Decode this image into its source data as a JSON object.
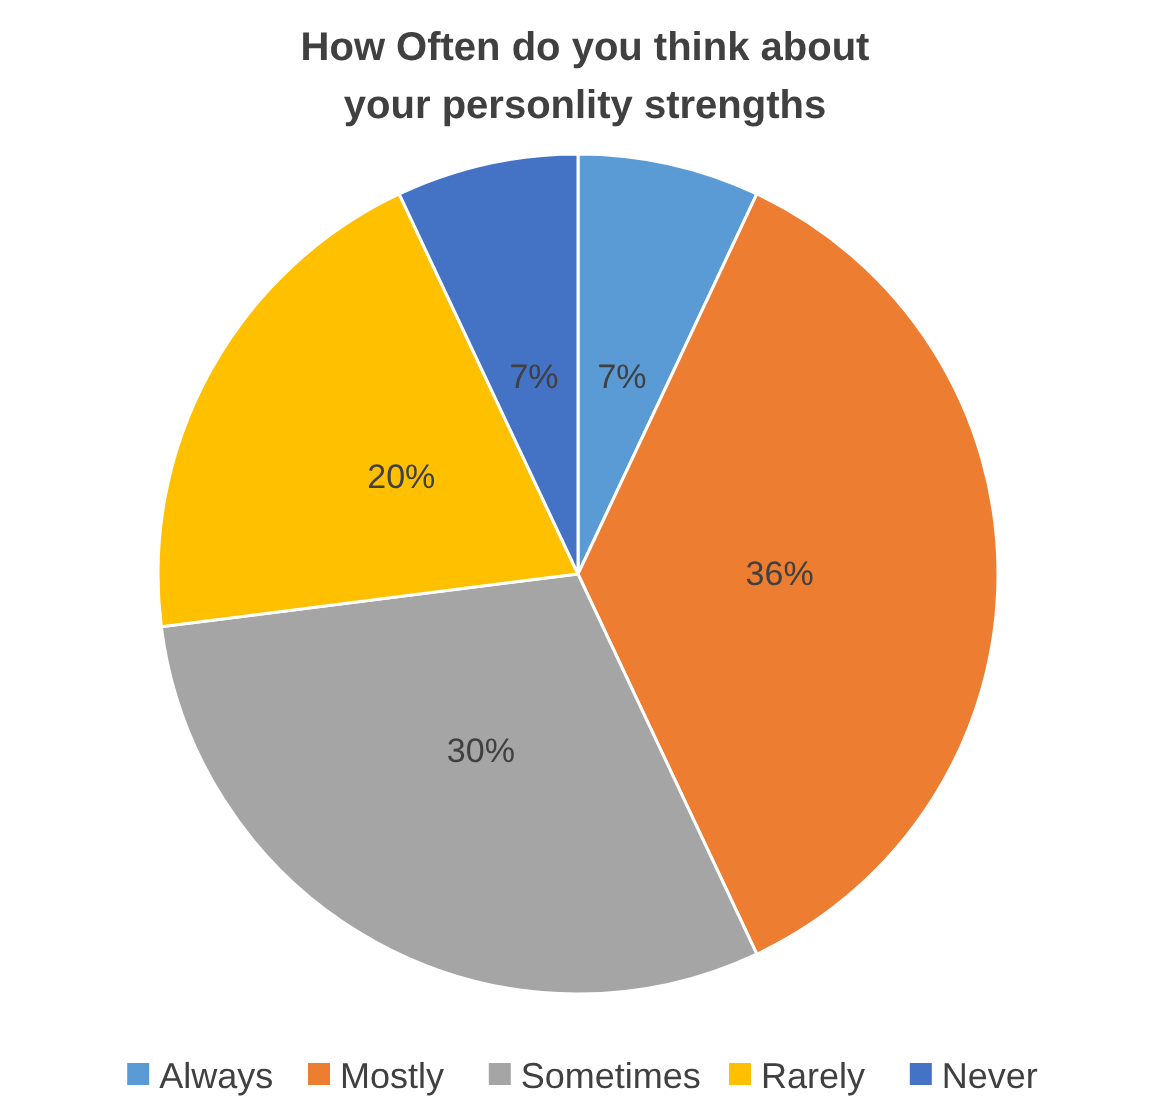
{
  "chart_data": {
    "type": "pie",
    "title": "How Often do you think about your personlity strengths",
    "categories": [
      "Always",
      "Mostly",
      "Sometimes",
      "Rarely",
      "Never"
    ],
    "values": [
      7,
      36,
      30,
      20,
      7
    ],
    "colors": [
      "#5b9bd5",
      "#ed7d31",
      "#a5a5a5",
      "#ffc000",
      "#4472c4"
    ],
    "value_labels": [
      "7%",
      "36%",
      "30%",
      "20%",
      "7%"
    ],
    "legend": "bottom"
  }
}
